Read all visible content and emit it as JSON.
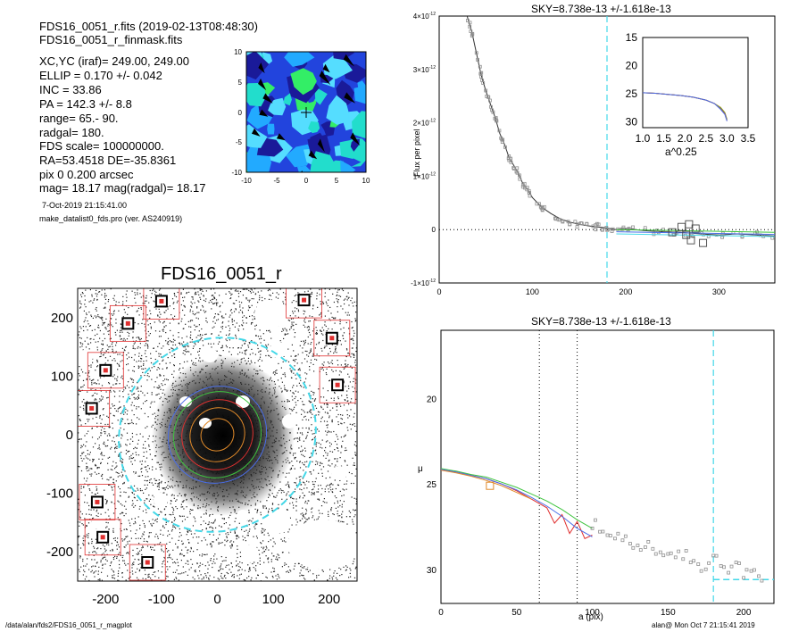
{
  "header": {
    "file1": "FDS16_0051_r.fits  (2019-02-13T08:48:30)",
    "file2": "FDS16_0051_r_finmask.fits",
    "lines": [
      "XC,YC (iraf)=   249.00, 249.00",
      "ELLIP = 0.170 +/- 0.042",
      "INC   = 33.86",
      "PA    = 142.3 +/-   8.8",
      "range=   65.-   90.",
      "radgal=  180.",
      "FDS scale=  100000000.",
      "RA=53.4518   DE=-35.8361",
      "pix 0 0.200 arcsec",
      "mag=  18.17  mag(radgal)=  18.17"
    ],
    "date": "7-Oct-2019 21:15:41.00",
    "program": "make_datalist0_fds.pro (ver. AS240919)"
  },
  "footer": {
    "path": "/data/alan/fds2/FDS16_0051_r_magplot",
    "stamp": "alan@  Mon Oct  7 21:15:41 2019"
  },
  "colors": {
    "cyan": "#44d8e8",
    "red": "#e03030",
    "green": "#3ec43e",
    "blue": "#4a6ee8",
    "orange": "#e08a2a",
    "grey": "#909090"
  },
  "chart_data": [
    {
      "id": "contour",
      "type": "heatmap",
      "title": "",
      "xlim": [
        -10,
        10
      ],
      "ylim": [
        -10,
        10
      ],
      "x_ticks": [
        "-10",
        "-5",
        "0",
        "5",
        "10"
      ],
      "y_ticks": [
        "10",
        "5",
        "0",
        "-5",
        "-10"
      ]
    },
    {
      "id": "flux",
      "type": "scatter",
      "title": "SKY=8.738e-13 +/-1.618e-13",
      "xlabel": "",
      "ylabel": "Flux per pixel",
      "xlim": [
        0,
        360
      ],
      "ylim": [
        -1e-12,
        4e-12
      ],
      "x_ticks": [
        "0",
        "100",
        "200",
        "300"
      ],
      "y_ticks": [
        {
          "value": 4,
          "label": "4×10",
          "exp": "-12"
        },
        {
          "value": 3,
          "label": "3×10",
          "exp": "-12"
        },
        {
          "value": 2,
          "label": "2×10",
          "exp": "-12"
        },
        {
          "value": 1,
          "label": "1×10",
          "exp": "-12"
        },
        {
          "value": 0,
          "label": "0",
          "exp": ""
        },
        {
          "value": -1,
          "label": "-1×10",
          "exp": "-12"
        }
      ],
      "radgal_line": 180,
      "profile_x": [
        30,
        35,
        40,
        45,
        50,
        55,
        60,
        65,
        70,
        75,
        80,
        85,
        90,
        95,
        100,
        110,
        120,
        130,
        140,
        150,
        160,
        170,
        180,
        190,
        200,
        220,
        240,
        260,
        280,
        300,
        320,
        340,
        360
      ],
      "profile_y": [
        4.0,
        3.7,
        3.3,
        2.9,
        2.6,
        2.35,
        2.1,
        1.8,
        1.6,
        1.35,
        1.2,
        1.05,
        0.85,
        0.75,
        0.6,
        0.42,
        0.3,
        0.2,
        0.14,
        0.1,
        0.07,
        0.05,
        0.03,
        0.0,
        0.02,
        -0.02,
        -0.04,
        -0.05,
        -0.08,
        -0.1,
        -0.08,
        -0.1,
        -0.12
      ],
      "outlier_boxes": [
        {
          "x": 250,
          "y": -0.05
        },
        {
          "x": 260,
          "y": 0.05
        },
        {
          "x": 265,
          "y": -0.1
        },
        {
          "x": 270,
          "y": -0.2
        },
        {
          "x": 275,
          "y": 0.02
        },
        {
          "x": 283,
          "y": -0.25
        },
        {
          "x": 268,
          "y": 0.1
        }
      ],
      "inset": {
        "xlabel": "a^0.25",
        "xlim": [
          1.0,
          3.5
        ],
        "ylim": [
          15,
          31
        ],
        "x_ticks": [
          "1.0",
          "1.5",
          "2.0",
          "2.5",
          "3.0",
          "3.5"
        ],
        "y_ticks": [
          "15",
          "20",
          "25",
          "30"
        ],
        "x": [
          1.0,
          1.3,
          1.6,
          1.9,
          2.2,
          2.5,
          2.7,
          2.85,
          2.95,
          3.0
        ],
        "y": [
          24.8,
          24.9,
          25.1,
          25.3,
          25.6,
          26.1,
          26.7,
          27.4,
          28.3,
          29.5
        ]
      }
    },
    {
      "id": "image",
      "type": "scatter",
      "title": "FDS16_0051_r",
      "xlim": [
        -250,
        250
      ],
      "ylim": [
        -250,
        250
      ],
      "x_ticks": [
        "-200",
        "-100",
        "0",
        "100",
        "200"
      ],
      "y_ticks": [
        "200",
        "100",
        "0",
        "-100",
        "-200"
      ],
      "ellipse_radii": [
        30,
        50,
        65,
        80,
        90,
        180
      ]
    },
    {
      "id": "mu",
      "type": "line",
      "title": "SKY=8.738e-13 +/-1.618e-13",
      "xlabel": "a (pix)",
      "ylabel": "μ",
      "xlim": [
        0,
        220
      ],
      "ylim": [
        32,
        16
      ],
      "x_ticks": [
        "0",
        "50",
        "100",
        "150",
        "200"
      ],
      "y_ticks": [
        "20",
        "25",
        "30"
      ],
      "range_lines": [
        65,
        90
      ],
      "radgal_line": 180,
      "sky_level": 30.6,
      "series": [
        {
          "color": "red",
          "x": [
            0,
            10,
            20,
            30,
            40,
            50,
            60,
            70,
            75,
            80,
            85,
            90,
            95,
            100
          ],
          "y": [
            24.2,
            24.3,
            24.5,
            24.7,
            25.0,
            25.4,
            25.9,
            26.4,
            27.3,
            26.8,
            27.9,
            27.2,
            28.2,
            28.0
          ]
        },
        {
          "color": "green",
          "x": [
            0,
            10,
            20,
            30,
            40,
            50,
            60,
            70,
            80,
            90,
            100
          ],
          "y": [
            24.1,
            24.25,
            24.45,
            24.6,
            24.9,
            25.2,
            25.6,
            26.0,
            26.5,
            27.1,
            27.6
          ]
        },
        {
          "color": "blue",
          "x": [
            0,
            10,
            20,
            30,
            40,
            50,
            60,
            70,
            80,
            90,
            100
          ],
          "y": [
            24.15,
            24.3,
            24.5,
            24.7,
            25.0,
            25.35,
            25.8,
            26.3,
            26.9,
            27.6,
            28.1
          ]
        },
        {
          "color": "orange",
          "x": [
            0,
            10,
            20,
            30,
            40,
            50,
            60
          ],
          "y": [
            24.2,
            24.35,
            24.55,
            24.8,
            25.1,
            25.5,
            25.9
          ]
        }
      ],
      "outer_points_x": [
        100,
        105,
        110,
        115,
        120,
        125,
        130,
        135,
        140,
        145,
        150,
        155,
        160,
        165,
        170,
        175,
        180,
        185,
        190,
        195,
        200,
        205,
        210
      ],
      "outer_points_y": [
        27.6,
        27.8,
        28.0,
        28.2,
        28.3,
        28.5,
        28.6,
        28.7,
        28.8,
        29.0,
        29.1,
        29.3,
        29.4,
        29.6,
        29.7,
        30.0,
        29.2,
        29.8,
        30.2,
        29.6,
        30.5,
        30.1,
        30.4
      ]
    }
  ]
}
